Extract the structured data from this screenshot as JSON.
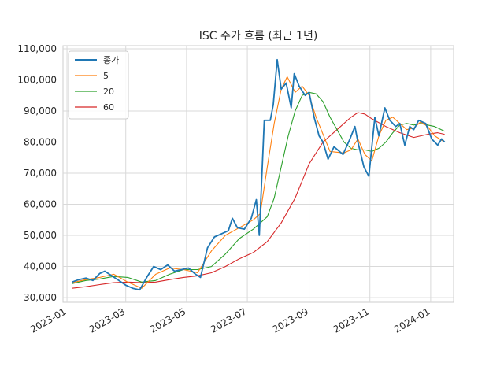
{
  "chart_data": {
    "type": "line",
    "title": "ISC 주가 흐름 (최근 1년)",
    "xlabel": "",
    "ylabel": "",
    "grid": true,
    "legend_position": "top-left",
    "x_range": [
      "2022-12-28",
      "2024-01-24"
    ],
    "ylim": [
      28500,
      111000
    ],
    "x_ticks": [
      "2023-01",
      "2023-03",
      "2023-05",
      "2023-07",
      "2023-09",
      "2023-11",
      "2024-01"
    ],
    "x_tick_dates": [
      "2023-01-01",
      "2023-03-01",
      "2023-05-01",
      "2023-07-01",
      "2023-09-01",
      "2023-11-01",
      "2024-01-01"
    ],
    "y_ticks": [
      "30,000",
      "40,000",
      "50,000",
      "60,000",
      "70,000",
      "80,000",
      "90,000",
      "100,000",
      "110,000"
    ],
    "y_tick_values": [
      30000,
      40000,
      50000,
      60000,
      70000,
      80000,
      90000,
      100000,
      110000
    ],
    "series": [
      {
        "name": "종가",
        "color": "#1f77b4",
        "points": [
          [
            "2023-01-06",
            35000
          ],
          [
            "2023-01-13",
            35800
          ],
          [
            "2023-01-20",
            36300
          ],
          [
            "2023-01-27",
            35500
          ],
          [
            "2023-02-03",
            37800
          ],
          [
            "2023-02-08",
            38500
          ],
          [
            "2023-02-15",
            37000
          ],
          [
            "2023-02-22",
            35500
          ],
          [
            "2023-03-01",
            34000
          ],
          [
            "2023-03-08",
            33000
          ],
          [
            "2023-03-15",
            32500
          ],
          [
            "2023-03-22",
            36500
          ],
          [
            "2023-03-29",
            40000
          ],
          [
            "2023-04-05",
            39000
          ],
          [
            "2023-04-12",
            40500
          ],
          [
            "2023-04-19",
            38500
          ],
          [
            "2023-04-26",
            39000
          ],
          [
            "2023-05-03",
            39500
          ],
          [
            "2023-05-10",
            37500
          ],
          [
            "2023-05-15",
            36500
          ],
          [
            "2023-05-22",
            46000
          ],
          [
            "2023-05-29",
            49500
          ],
          [
            "2023-06-05",
            50500
          ],
          [
            "2023-06-12",
            51500
          ],
          [
            "2023-06-16",
            55500
          ],
          [
            "2023-06-21",
            52500
          ],
          [
            "2023-06-28",
            52000
          ],
          [
            "2023-07-05",
            55500
          ],
          [
            "2023-07-10",
            61500
          ],
          [
            "2023-07-13",
            50000
          ],
          [
            "2023-07-18",
            87000
          ],
          [
            "2023-07-24",
            87000
          ],
          [
            "2023-07-27",
            92000
          ],
          [
            "2023-07-31",
            106500
          ],
          [
            "2023-08-04",
            97000
          ],
          [
            "2023-08-09",
            99000
          ],
          [
            "2023-08-14",
            91000
          ],
          [
            "2023-08-17",
            102000
          ],
          [
            "2023-08-22",
            98000
          ],
          [
            "2023-08-28",
            95000
          ],
          [
            "2023-09-01",
            96000
          ],
          [
            "2023-09-06",
            88000
          ],
          [
            "2023-09-11",
            82000
          ],
          [
            "2023-09-15",
            80000
          ],
          [
            "2023-09-20",
            74500
          ],
          [
            "2023-09-26",
            78500
          ],
          [
            "2023-10-05",
            76000
          ],
          [
            "2023-10-12",
            81000
          ],
          [
            "2023-10-17",
            85000
          ],
          [
            "2023-10-20",
            80000
          ],
          [
            "2023-10-26",
            72000
          ],
          [
            "2023-10-31",
            69000
          ],
          [
            "2023-11-06",
            88000
          ],
          [
            "2023-11-10",
            82000
          ],
          [
            "2023-11-16",
            91000
          ],
          [
            "2023-11-21",
            87000
          ],
          [
            "2023-11-27",
            85000
          ],
          [
            "2023-12-01",
            86000
          ],
          [
            "2023-12-06",
            79000
          ],
          [
            "2023-12-11",
            85000
          ],
          [
            "2023-12-15",
            84000
          ],
          [
            "2023-12-20",
            87000
          ],
          [
            "2023-12-27",
            86000
          ],
          [
            "2024-01-02",
            81000
          ],
          [
            "2024-01-08",
            79000
          ],
          [
            "2024-01-12",
            81000
          ],
          [
            "2024-01-15",
            80000
          ]
        ]
      },
      {
        "name": "5",
        "color": "#ff7f0e",
        "points": [
          [
            "2023-01-06",
            34800
          ],
          [
            "2023-01-20",
            35800
          ],
          [
            "2023-02-03",
            36500
          ],
          [
            "2023-02-17",
            37500
          ],
          [
            "2023-03-03",
            35000
          ],
          [
            "2023-03-17",
            33000
          ],
          [
            "2023-03-31",
            37500
          ],
          [
            "2023-04-14",
            39500
          ],
          [
            "2023-04-28",
            39000
          ],
          [
            "2023-05-12",
            38000
          ],
          [
            "2023-05-26",
            45000
          ],
          [
            "2023-06-09",
            50000
          ],
          [
            "2023-06-23",
            52500
          ],
          [
            "2023-07-07",
            55000
          ],
          [
            "2023-07-14",
            57000
          ],
          [
            "2023-07-21",
            72000
          ],
          [
            "2023-07-28",
            86000
          ],
          [
            "2023-08-04",
            97000
          ],
          [
            "2023-08-10",
            101000
          ],
          [
            "2023-08-18",
            96000
          ],
          [
            "2023-08-25",
            98000
          ],
          [
            "2023-09-01",
            95000
          ],
          [
            "2023-09-08",
            88000
          ],
          [
            "2023-09-15",
            82500
          ],
          [
            "2023-09-22",
            77000
          ],
          [
            "2023-10-06",
            76500
          ],
          [
            "2023-10-13",
            77500
          ],
          [
            "2023-10-20",
            81000
          ],
          [
            "2023-10-27",
            76000
          ],
          [
            "2023-11-03",
            74000
          ],
          [
            "2023-11-10",
            82000
          ],
          [
            "2023-11-17",
            87000
          ],
          [
            "2023-11-24",
            88000
          ],
          [
            "2023-12-01",
            86000
          ],
          [
            "2023-12-08",
            84000
          ],
          [
            "2023-12-15",
            84500
          ],
          [
            "2023-12-22",
            86500
          ],
          [
            "2023-12-29",
            85000
          ],
          [
            "2024-01-05",
            82000
          ],
          [
            "2024-01-15",
            80000
          ]
        ]
      },
      {
        "name": "20",
        "color": "#2ca02c",
        "points": [
          [
            "2023-01-06",
            34500
          ],
          [
            "2023-01-20",
            35500
          ],
          [
            "2023-02-03",
            36000
          ],
          [
            "2023-02-17",
            36800
          ],
          [
            "2023-03-03",
            36500
          ],
          [
            "2023-03-17",
            35000
          ],
          [
            "2023-03-31",
            35500
          ],
          [
            "2023-04-14",
            37500
          ],
          [
            "2023-04-28",
            39000
          ],
          [
            "2023-05-12",
            39000
          ],
          [
            "2023-05-26",
            40000
          ],
          [
            "2023-06-09",
            44000
          ],
          [
            "2023-06-23",
            49000
          ],
          [
            "2023-07-07",
            52000
          ],
          [
            "2023-07-21",
            56000
          ],
          [
            "2023-07-28",
            62000
          ],
          [
            "2023-08-04",
            72000
          ],
          [
            "2023-08-11",
            82000
          ],
          [
            "2023-08-18",
            90000
          ],
          [
            "2023-08-25",
            95000
          ],
          [
            "2023-09-01",
            96000
          ],
          [
            "2023-09-08",
            95500
          ],
          [
            "2023-09-15",
            93000
          ],
          [
            "2023-09-22",
            88000
          ],
          [
            "2023-09-29",
            84000
          ],
          [
            "2023-10-06",
            80000
          ],
          [
            "2023-10-13",
            78000
          ],
          [
            "2023-10-20",
            77500
          ],
          [
            "2023-10-27",
            77500
          ],
          [
            "2023-11-03",
            77000
          ],
          [
            "2023-11-10",
            78000
          ],
          [
            "2023-11-17",
            80000
          ],
          [
            "2023-11-24",
            83000
          ],
          [
            "2023-12-01",
            85500
          ],
          [
            "2023-12-08",
            86000
          ],
          [
            "2023-12-15",
            85500
          ],
          [
            "2023-12-22",
            86000
          ],
          [
            "2023-12-29",
            85500
          ],
          [
            "2024-01-05",
            85000
          ],
          [
            "2024-01-15",
            83500
          ]
        ]
      },
      {
        "name": "60",
        "color": "#d62728",
        "points": [
          [
            "2023-01-06",
            33000
          ],
          [
            "2023-01-20",
            33500
          ],
          [
            "2023-02-03",
            34200
          ],
          [
            "2023-02-17",
            34800
          ],
          [
            "2023-03-03",
            35000
          ],
          [
            "2023-03-17",
            34800
          ],
          [
            "2023-03-31",
            35000
          ],
          [
            "2023-04-14",
            35800
          ],
          [
            "2023-04-28",
            36500
          ],
          [
            "2023-05-12",
            37000
          ],
          [
            "2023-05-26",
            38000
          ],
          [
            "2023-06-09",
            40000
          ],
          [
            "2023-06-23",
            42500
          ],
          [
            "2023-07-07",
            44500
          ],
          [
            "2023-07-21",
            48000
          ],
          [
            "2023-08-04",
            54000
          ],
          [
            "2023-08-18",
            62000
          ],
          [
            "2023-09-01",
            73000
          ],
          [
            "2023-09-15",
            80000
          ],
          [
            "2023-09-29",
            84000
          ],
          [
            "2023-10-13",
            88000
          ],
          [
            "2023-10-20",
            89500
          ],
          [
            "2023-10-27",
            89000
          ],
          [
            "2023-11-03",
            87500
          ],
          [
            "2023-11-17",
            85000
          ],
          [
            "2023-12-01",
            83000
          ],
          [
            "2023-12-15",
            81500
          ],
          [
            "2023-12-29",
            82500
          ],
          [
            "2024-01-08",
            83000
          ],
          [
            "2024-01-15",
            82500
          ]
        ]
      }
    ]
  }
}
